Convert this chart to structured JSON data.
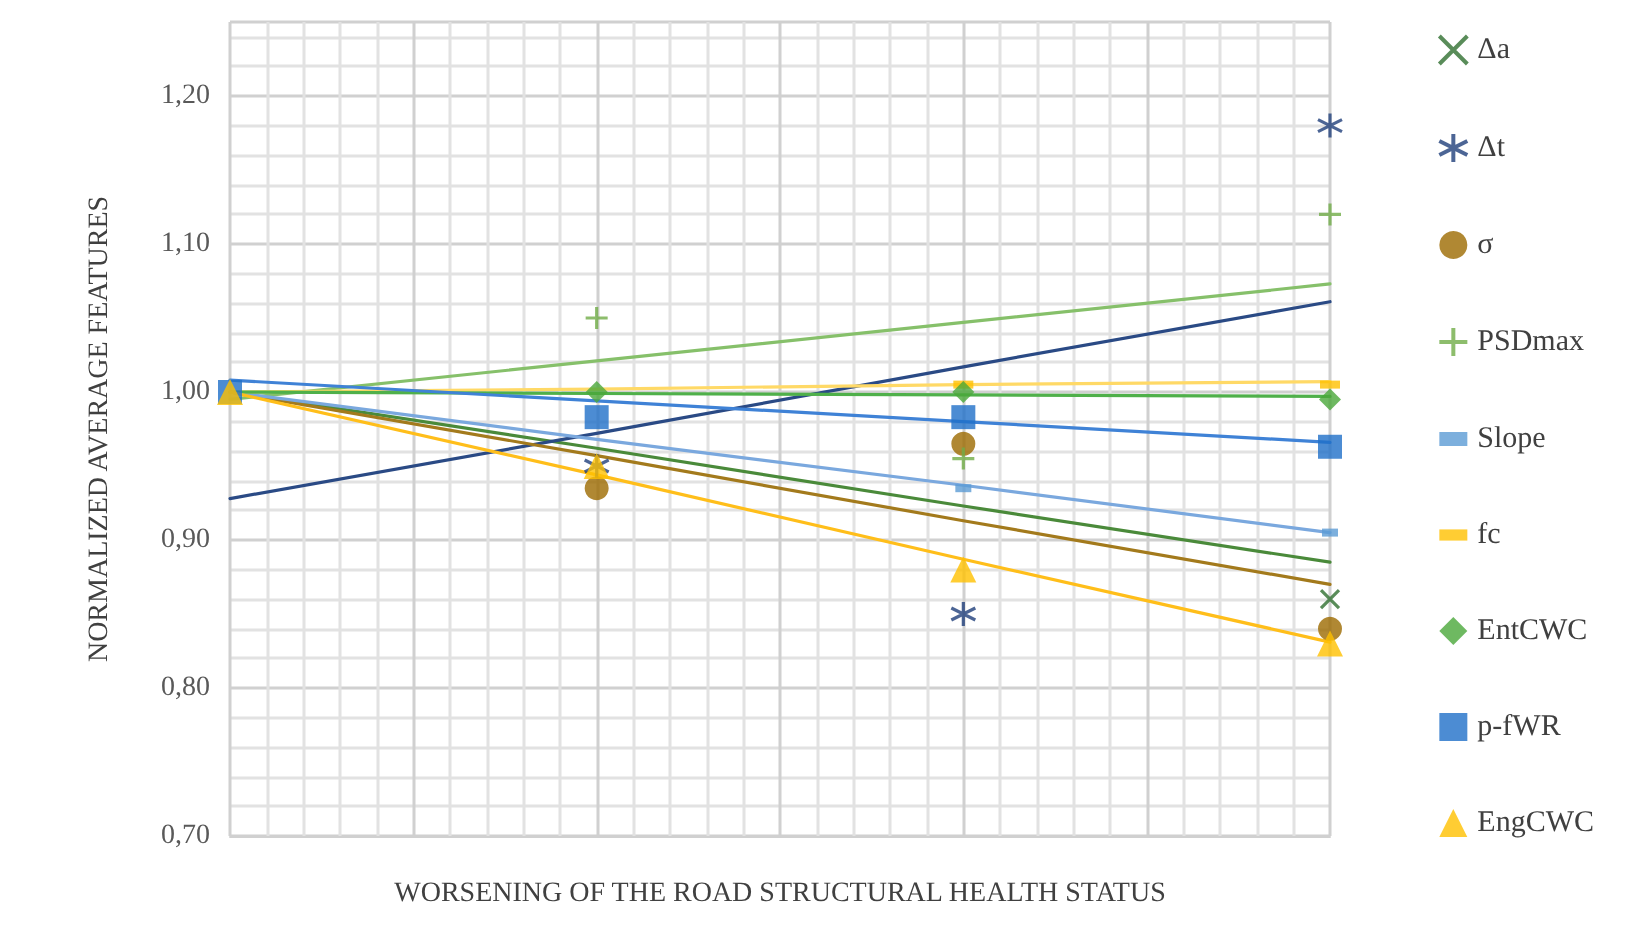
{
  "chart_data": {
    "type": "scatter",
    "xlabel": "WORSENING OF THE ROAD STRUCTURAL HEALTH STATUS",
    "ylabel": "NORMALIZED AVERAGE FEATURES",
    "categories": [
      null,
      null,
      null,
      null
    ],
    "ylim": [
      0.7,
      1.25
    ],
    "yticks": [
      {
        "value": 0.7,
        "label": "0,70"
      },
      {
        "value": 0.8,
        "label": "0,80"
      },
      {
        "value": 0.9,
        "label": "0,90"
      },
      {
        "value": 1.0,
        "label": "1,00"
      },
      {
        "value": 1.1,
        "label": "1,10"
      },
      {
        "value": 1.2,
        "label": "1,20"
      }
    ],
    "grid": true,
    "legend": "right",
    "tick_labels": "y",
    "series": [
      {
        "type": "line",
        "color": "#4a8a3a",
        "marker": "none",
        "values": [
          1.0,
          0.962,
          0.923,
          0.885
        ]
      },
      {
        "type": "line",
        "color": "#2a4a85",
        "marker": "none",
        "values": [
          0.928,
          0.972,
          1.017,
          1.061
        ]
      },
      {
        "type": "line",
        "color": "#a37a1c",
        "marker": "none",
        "values": [
          1.0,
          0.957,
          0.913,
          0.87
        ]
      },
      {
        "type": "line",
        "color": "#86c06a",
        "marker": "none",
        "values": [
          0.995,
          1.021,
          1.047,
          1.073
        ]
      },
      {
        "type": "line",
        "color": "#7aa8de",
        "marker": "none",
        "values": [
          1.0,
          0.968,
          0.937,
          0.905
        ]
      },
      {
        "type": "line",
        "color": "#ffd966",
        "marker": "none",
        "values": [
          1.0,
          1.002,
          1.005,
          1.007
        ]
      },
      {
        "type": "line",
        "color": "#4fb04a",
        "marker": "none",
        "values": [
          1.0,
          0.999,
          0.998,
          0.997
        ]
      },
      {
        "type": "line",
        "color": "#3f82d6",
        "marker": "none",
        "values": [
          1.008,
          0.994,
          0.98,
          0.966
        ]
      },
      {
        "type": "line",
        "color": "#ffbe1a",
        "marker": "none",
        "values": [
          1.0,
          0.944,
          0.887,
          0.831
        ]
      },
      {
        "name": "Δa",
        "color": "#2f6f2f",
        "marker": "cross",
        "values": [
          null,
          null,
          null,
          0.86
        ]
      },
      {
        "name": "Δt",
        "color": "#1f3f7a",
        "values": [
          null,
          0.95,
          0.85,
          1.18
        ]
      },
      {
        "name": "σ",
        "color": "#9c6a00",
        "marker": "circle",
        "values": [
          null,
          0.935,
          0.965,
          0.84
        ]
      },
      {
        "name": "PSDmax",
        "color": "#70ad47",
        "marker": "plus",
        "values": [
          null,
          1.05,
          0.955,
          1.12
        ]
      },
      {
        "name": "Slope",
        "color": "#5b9bd5",
        "values": [
          null,
          null,
          0.935,
          0.905
        ]
      },
      {
        "name": "fc",
        "color": "#ffc000",
        "values": [
          null,
          null,
          1.005,
          1.005
        ]
      },
      {
        "name": "EntCWC",
        "color": "#4aa83a",
        "marker": "diamond",
        "values": [
          null,
          1.0,
          1.0,
          0.995
        ]
      },
      {
        "name": "p-fWR",
        "color": "#1f6fc8",
        "marker": "square",
        "values": [
          1.0,
          0.983,
          0.983,
          0.963
        ]
      },
      {
        "name": "EngCWC",
        "color": "#ffc000",
        "marker": "triangle",
        "values": [
          1.0,
          0.95,
          0.88,
          0.83
        ]
      }
    ]
  }
}
